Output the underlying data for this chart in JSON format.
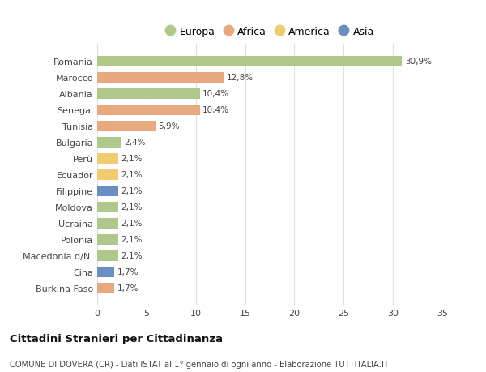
{
  "categories": [
    "Romania",
    "Marocco",
    "Albania",
    "Senegal",
    "Tunisia",
    "Bulgaria",
    "Perù",
    "Ecuador",
    "Filippine",
    "Moldova",
    "Ucraina",
    "Polonia",
    "Macedonia d/N.",
    "Cina",
    "Burkina Faso"
  ],
  "values": [
    30.9,
    12.8,
    10.4,
    10.4,
    5.9,
    2.4,
    2.1,
    2.1,
    2.1,
    2.1,
    2.1,
    2.1,
    2.1,
    1.7,
    1.7
  ],
  "labels": [
    "30,9%",
    "12,8%",
    "10,4%",
    "10,4%",
    "5,9%",
    "2,4%",
    "2,1%",
    "2,1%",
    "2,1%",
    "2,1%",
    "2,1%",
    "2,1%",
    "2,1%",
    "1,7%",
    "1,7%"
  ],
  "colors": [
    "#aec98a",
    "#e8a97e",
    "#aec98a",
    "#e8a97e",
    "#e8a97e",
    "#aec98a",
    "#f0cc6e",
    "#f0cc6e",
    "#6b8fc2",
    "#aec98a",
    "#aec98a",
    "#aec98a",
    "#aec98a",
    "#6b8fc2",
    "#e8a97e"
  ],
  "continent_colors": {
    "Europa": "#aec98a",
    "Africa": "#e8a97e",
    "America": "#f0cc6e",
    "Asia": "#6b8fc2"
  },
  "title": "Cittadini Stranieri per Cittadinanza",
  "subtitle": "COMUNE DI DOVERA (CR) - Dati ISTAT al 1° gennaio di ogni anno - Elaborazione TUTTITALIA.IT",
  "xlim": [
    0,
    35
  ],
  "xticks": [
    0,
    5,
    10,
    15,
    20,
    25,
    30,
    35
  ],
  "background_color": "#ffffff",
  "grid_color": "#e0e0e0",
  "bar_height": 0.65
}
